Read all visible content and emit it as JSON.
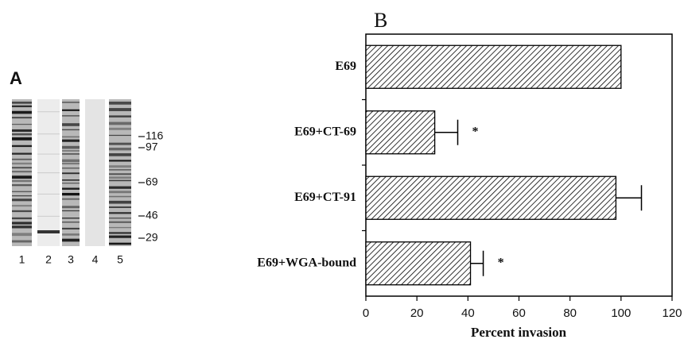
{
  "gel": {
    "label": "A",
    "lanes": [
      "1",
      "2",
      "3",
      "4",
      "5"
    ],
    "markers": [
      116,
      97,
      69,
      46,
      29
    ]
  },
  "chart_data": {
    "type": "bar",
    "orientation": "horizontal",
    "title": "B",
    "categories": [
      "E69",
      "E69+CT-69",
      "E69+CT-91",
      "E69+WGA-bound"
    ],
    "values": [
      100,
      27,
      98,
      41
    ],
    "errors": [
      null,
      9,
      10,
      5
    ],
    "significance": [
      null,
      "*",
      null,
      "*"
    ],
    "color": "#000000",
    "hatch": true,
    "xlabel": "Percent invasion",
    "xlim": [
      0,
      120
    ],
    "xticks": [
      0,
      20,
      40,
      60,
      80,
      100,
      120
    ]
  }
}
